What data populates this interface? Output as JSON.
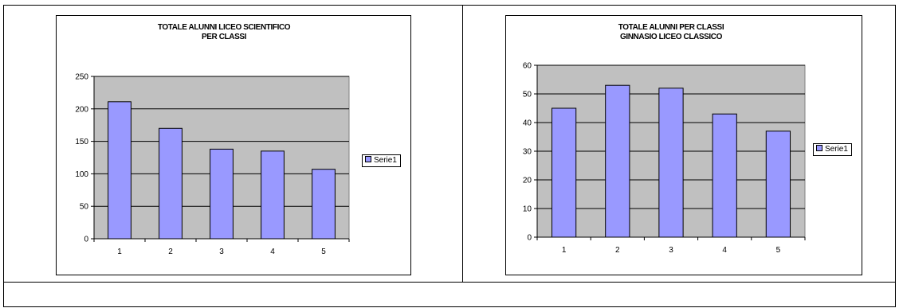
{
  "colors": {
    "bar": "#9999FF",
    "plot_bg": "#C0C0C0",
    "grid": "#000000"
  },
  "chart_data": [
    {
      "type": "bar",
      "title_lines": [
        "TOTALE ALUNNI LICEO SCIENTIFICO",
        "PER CLASSI"
      ],
      "categories": [
        "1",
        "2",
        "3",
        "4",
        "5"
      ],
      "series": [
        {
          "name": "Serie1",
          "values": [
            211,
            170,
            138,
            135,
            107
          ]
        }
      ],
      "yticks": [
        "0",
        "50",
        "100",
        "150",
        "200",
        "250"
      ],
      "ylim": [
        0,
        250
      ],
      "grid": true,
      "legend_position": "right"
    },
    {
      "type": "bar",
      "title_lines": [
        "TOTALE ALUNNI PER CLASSI",
        "GINNASIO LICEO CLASSICO"
      ],
      "categories": [
        "1",
        "2",
        "3",
        "4",
        "5"
      ],
      "series": [
        {
          "name": "Serie1",
          "values": [
            45,
            53,
            52,
            43,
            37
          ]
        }
      ],
      "yticks": [
        "0",
        "10",
        "20",
        "30",
        "40",
        "50",
        "60"
      ],
      "ylim": [
        0,
        60
      ],
      "grid": true,
      "legend_position": "right"
    }
  ]
}
